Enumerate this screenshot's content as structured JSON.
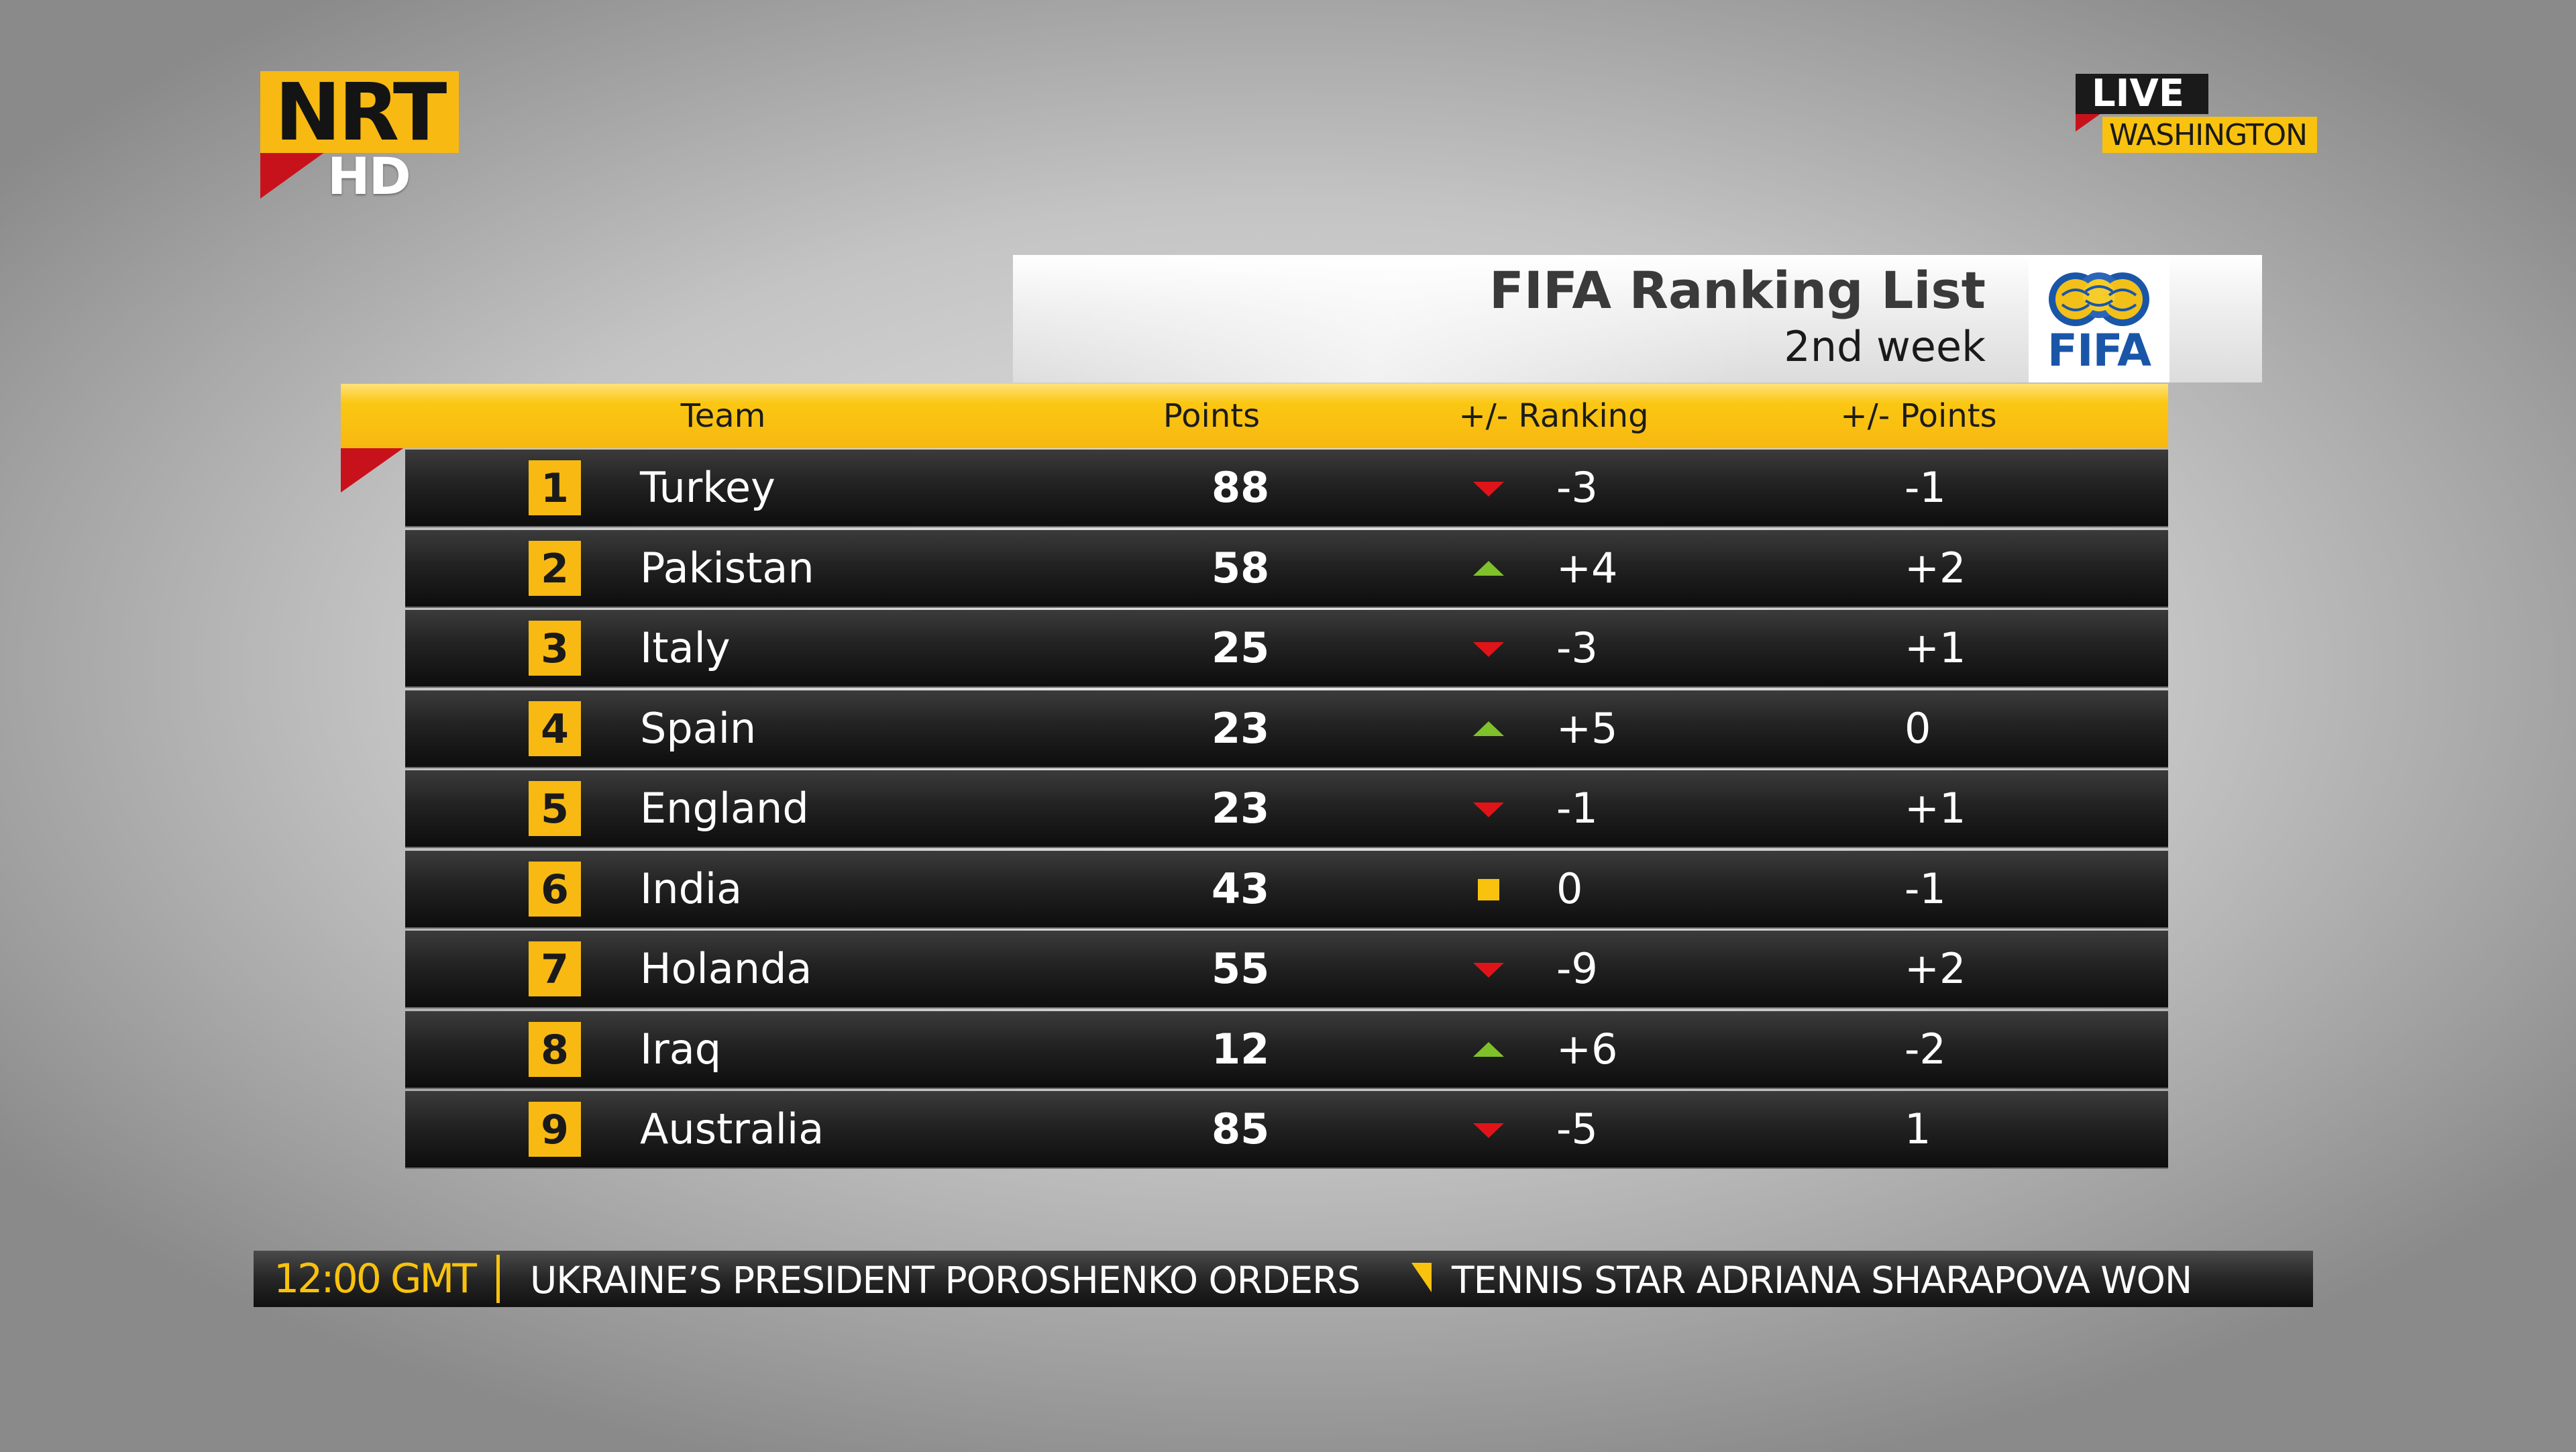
{
  "logo": {
    "brand": "NRT",
    "sub": "HD"
  },
  "live_badge": {
    "label": "LIVE",
    "location": "WASHINGTON"
  },
  "panel": {
    "title": "FIFA Ranking List",
    "subtitle": "2nd week",
    "org_logo_text": "FIFA"
  },
  "columns": {
    "team": "Team",
    "points": "Points",
    "ranking_change": "+/- Ranking",
    "points_change": "+/- Points"
  },
  "rows": [
    {
      "rank": "1",
      "team": "Turkey",
      "points": "88",
      "trend": "down",
      "ranking_change": "-3",
      "points_change": "-1"
    },
    {
      "rank": "2",
      "team": "Pakistan",
      "points": "58",
      "trend": "up",
      "ranking_change": "+4",
      "points_change": "+2"
    },
    {
      "rank": "3",
      "team": "Italy",
      "points": "25",
      "trend": "down",
      "ranking_change": "-3",
      "points_change": "+1"
    },
    {
      "rank": "4",
      "team": "Spain",
      "points": "23",
      "trend": "up",
      "ranking_change": "+5",
      "points_change": "0"
    },
    {
      "rank": "5",
      "team": "England",
      "points": "23",
      "trend": "down",
      "ranking_change": "-1",
      "points_change": "+1"
    },
    {
      "rank": "6",
      "team": "India",
      "points": "43",
      "trend": "same",
      "ranking_change": "0",
      "points_change": "-1"
    },
    {
      "rank": "7",
      "team": "Holanda",
      "points": "55",
      "trend": "down",
      "ranking_change": "-9",
      "points_change": "+2"
    },
    {
      "rank": "8",
      "team": "Iraq",
      "points": "12",
      "trend": "up",
      "ranking_change": "+6",
      "points_change": "-2"
    },
    {
      "rank": "9",
      "team": "Australia",
      "points": "85",
      "trend": "down",
      "ranking_change": "-5",
      "points_change": "1"
    }
  ],
  "ticker": {
    "time": "12:00 GMT",
    "headline_1": "UKRAINE’S PRESIDENT POROSHENKO ORDERS",
    "headline_2": "TENNIS STAR ADRIANA SHARAPOVA WON"
  },
  "colors": {
    "accent_yellow": "#f8b912",
    "accent_red": "#c8121b",
    "trend_up": "#7fc12a",
    "trend_down": "#e01418",
    "fifa_blue": "#1a56a8"
  }
}
